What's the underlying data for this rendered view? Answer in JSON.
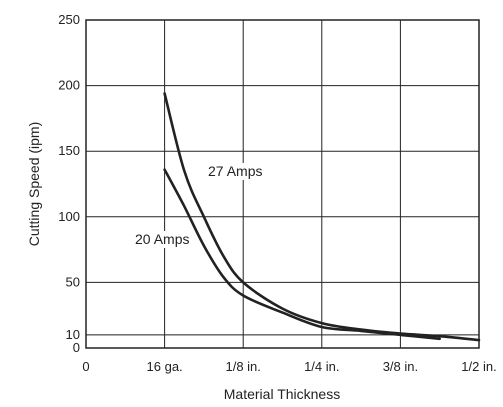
{
  "chart_data": {
    "type": "line",
    "xlabel": "Material Thickness",
    "ylabel": "Cutting Speed (ipm)",
    "x_categories": [
      "0",
      "16 ga.",
      "1/8 in.",
      "1/4 in.",
      "3/8 in.",
      "1/2 in."
    ],
    "y_ticks": [
      0,
      10,
      50,
      100,
      150,
      200,
      250
    ],
    "ylim": [
      0,
      250
    ],
    "grid": true,
    "series": [
      {
        "name": "27 Amps",
        "points": [
          [
            1,
            194
          ],
          [
            1.25,
            135
          ],
          [
            1.5,
            100
          ],
          [
            1.75,
            70
          ],
          [
            2,
            50
          ],
          [
            2.5,
            30
          ],
          [
            3,
            19
          ],
          [
            3.5,
            14
          ],
          [
            4,
            11
          ],
          [
            4.5,
            9
          ],
          [
            5,
            6
          ]
        ]
      },
      {
        "name": "20 Amps",
        "points": [
          [
            1,
            136
          ],
          [
            1.25,
            108
          ],
          [
            1.5,
            78
          ],
          [
            1.75,
            54
          ],
          [
            2,
            40
          ],
          [
            2.5,
            27
          ],
          [
            3,
            16
          ],
          [
            3.5,
            13
          ],
          [
            4,
            10
          ],
          [
            4.5,
            7
          ]
        ]
      }
    ]
  }
}
